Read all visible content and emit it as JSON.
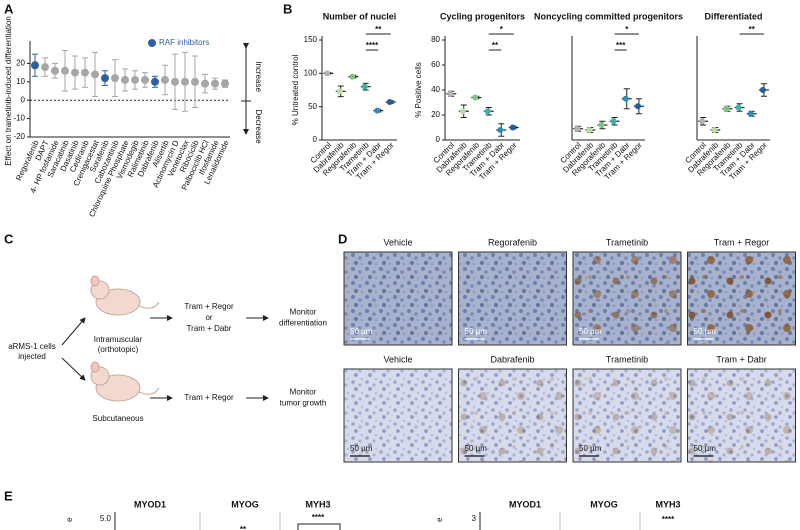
{
  "panels": [
    "A",
    "B",
    "C",
    "D",
    "E"
  ],
  "chart_data": [
    {
      "type": "dot",
      "y_label": "Effect on trametinib-induced differentiation",
      "categories": [
        "Regorafenib",
        "DAPT",
        "4- HP fosfamide",
        "Saracatinib",
        "Dasatinib",
        "Cediranib",
        "Crenigacestat",
        "Sorafenib",
        "Cabozantinib",
        "Chloroquine Phosphate",
        "Vismodegib",
        "Ralimetinib",
        "Dabrafenib",
        "Alisertib",
        "Actinomycin D",
        "Venetoclax",
        "Ribociclib",
        "Palbociclib HCl",
        "Ifosfamide",
        "Lenalidomide"
      ],
      "values": [
        19,
        18,
        16,
        16,
        15,
        15,
        14,
        12,
        12,
        11,
        11,
        11,
        10,
        11,
        10,
        10,
        10,
        9,
        9,
        9
      ],
      "errors": [
        6,
        5,
        4,
        11,
        9,
        8,
        12,
        4,
        10,
        6,
        5,
        4,
        3,
        8,
        15,
        16,
        14,
        5,
        3,
        2
      ],
      "colors": [
        "#2e5fa3",
        "#a6a6a6",
        "#a6a6a6",
        "#a6a6a6",
        "#a6a6a6",
        "#a6a6a6",
        "#a6a6a6",
        "#2e5fa3",
        "#a6a6a6",
        "#a6a6a6",
        "#a6a6a6",
        "#a6a6a6",
        "#2e5fa3",
        "#a6a6a6",
        "#a6a6a6",
        "#a6a6a6",
        "#a6a6a6",
        "#a6a6a6",
        "#a6a6a6",
        "#a6a6a6"
      ],
      "legend": "RAF inhibitors",
      "legend_color": "#2e5fa3",
      "reference_line": 0,
      "annotations": [
        "Increase",
        "Decrease"
      ],
      "ylim": [
        -20,
        30
      ],
      "yticks": [
        -20,
        -10,
        0,
        10,
        20
      ]
    },
    {
      "type": "strip",
      "title": "Number of nuclei",
      "y_label": "% Untreated control",
      "categories": [
        "Control",
        "Dabrafenib",
        "Regorafenib",
        "Trametinib",
        "Tram + Dabr",
        "Tram + Regor"
      ],
      "values": [
        100,
        73,
        95,
        80,
        44,
        57
      ],
      "errors": [
        1,
        8,
        2,
        5,
        2,
        2
      ],
      "colors": [
        "#b3b3b3",
        "#b7dca4",
        "#7cc47f",
        "#3db3ac",
        "#2a8db8",
        "#1f5d9e"
      ],
      "significance": [
        {
          "label": "**",
          "from": "Trametinib",
          "to": "Tram + Regor"
        },
        {
          "label": "****",
          "from": "Trametinib",
          "to": "Tram + Dabr"
        }
      ],
      "ylim": [
        0,
        150
      ],
      "yticks": [
        0,
        50,
        100,
        150
      ]
    },
    {
      "type": "strip",
      "title": "Cycling progenitors",
      "y_label": "% Positive cells",
      "categories": [
        "Control",
        "Dabrafenib",
        "Regorafenib",
        "Trametinib",
        "Tram + Dabr",
        "Tram + Regor"
      ],
      "values": [
        37,
        23,
        34,
        23,
        8,
        10
      ],
      "errors": [
        2,
        5,
        1,
        3,
        5,
        1
      ],
      "colors": [
        "#b3b3b3",
        "#b7dca4",
        "#7cc47f",
        "#3db3ac",
        "#2a8db8",
        "#1f5d9e"
      ],
      "significance": [
        {
          "label": "*",
          "from": "Trametinib",
          "to": "Tram + Regor"
        },
        {
          "label": "**",
          "from": "Trametinib",
          "to": "Tram + Dabr"
        }
      ],
      "ylim": [
        0,
        80
      ],
      "yticks": [
        0,
        20,
        40,
        60,
        80
      ]
    },
    {
      "type": "strip",
      "title": "Noncycling committed progenitors",
      "categories": [
        "Control",
        "Dabrafenib",
        "Regorafenib",
        "Trametinib",
        "Tram + Dabr",
        "Tram + Regor"
      ],
      "values": [
        9,
        8,
        12,
        15,
        33,
        27
      ],
      "errors": [
        2,
        2,
        3,
        3,
        8,
        6
      ],
      "colors": [
        "#b3b3b3",
        "#b7dca4",
        "#7cc47f",
        "#3db3ac",
        "#2a8db8",
        "#1f5d9e"
      ],
      "significance": [
        {
          "label": "*",
          "from": "Trametinib",
          "to": "Tram + Regor"
        },
        {
          "label": "***",
          "from": "Trametinib",
          "to": "Tram + Dabr"
        }
      ],
      "ylim": [
        0,
        80
      ]
    },
    {
      "type": "strip",
      "title": "Differentiated",
      "categories": [
        "Control",
        "Dabrafenib",
        "Regorafenib",
        "Trametinib",
        "Tram + Dabr",
        "Tram + Regor"
      ],
      "values": [
        15,
        8,
        25,
        26,
        21,
        40
      ],
      "errors": [
        3,
        2,
        2,
        3,
        2,
        5
      ],
      "colors": [
        "#b3b3b3",
        "#b7dca4",
        "#7cc47f",
        "#3db3ac",
        "#2a8db8",
        "#1f5d9e"
      ],
      "significance": [
        {
          "label": "**",
          "from": "Trametinib",
          "to": "Tram + Regor"
        }
      ],
      "ylim": [
        0,
        80
      ]
    }
  ],
  "diagram": {
    "start": [
      "aRMS-1 cells",
      "injected"
    ],
    "routes": [
      {
        "site": [
          "Intramuscular",
          "(orthotopic)"
        ],
        "treatment": [
          "Tram + Regor",
          "or",
          "Tram + Dabr"
        ],
        "outcome": [
          "Monitor",
          "differentiation"
        ]
      },
      {
        "site": [
          "Subcutaneous"
        ],
        "treatment": [
          "Tram + Regor"
        ],
        "outcome": [
          "Monitor",
          "tumor growth"
        ]
      }
    ]
  },
  "micrographs": {
    "rows": [
      [
        "Vehicle",
        "Regorafenib",
        "Trametinib",
        "Tram + Regor"
      ],
      [
        "Vehicle",
        "Dabrafenib",
        "Trametinib",
        "Tram + Dabr"
      ]
    ],
    "scale_bar": "50 µm"
  },
  "panel_e": {
    "y_label_fragment": "e",
    "left": {
      "titles": [
        "MYOD1",
        "MYOG",
        "MYH3"
      ],
      "ytick": "5.0",
      "significance": [
        "**",
        "****"
      ]
    },
    "right": {
      "titles": [
        "MYOD1",
        "MYOG",
        "MYH3"
      ],
      "ytick": "3",
      "significance": [
        "****"
      ]
    }
  }
}
